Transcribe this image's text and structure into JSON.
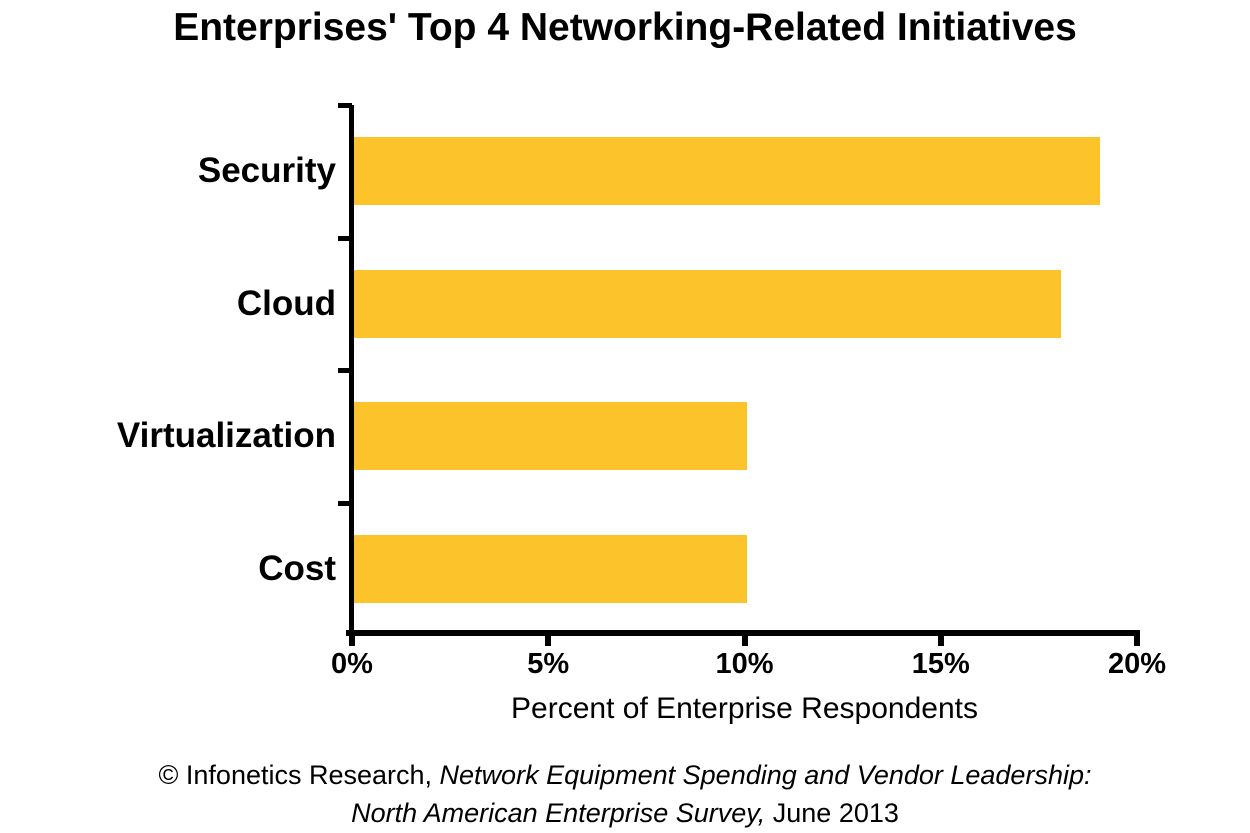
{
  "title": "Enterprises' Top 4 Networking-Related Initiatives",
  "chart_data": {
    "type": "bar",
    "orientation": "horizontal",
    "title": "Enterprises' Top 4 Networking-Related Initiatives",
    "categories": [
      "Security",
      "Cloud",
      "Virtualization",
      "Cost"
    ],
    "values": [
      19,
      18,
      10,
      10
    ],
    "value_unit": "%",
    "xlabel": "Percent of Enterprise Respondents",
    "ylabel": "",
    "xlim": [
      0,
      20
    ],
    "xticks": [
      0,
      5,
      10,
      15,
      20
    ],
    "xtick_labels": [
      "0%",
      "5%",
      "10%",
      "15%",
      "20%"
    ],
    "grid": false,
    "legend": false,
    "bar_color": "#FDC32B",
    "axis_color": "#000000",
    "text_color": "#000000"
  },
  "footer": {
    "prefix": "© Infonetics Research, ",
    "italic1": "Network Equipment Spending and Vendor Leadership:",
    "italic2": "North American Enterprise Survey,",
    "suffix": " June 2013"
  }
}
